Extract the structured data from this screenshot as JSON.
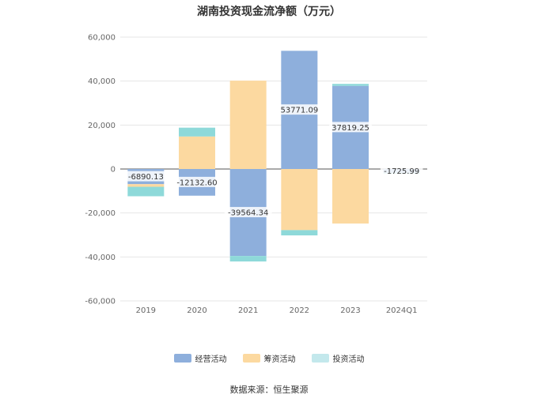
{
  "chart_data": {
    "type": "bar",
    "stacked": true,
    "title": "湖南投资现金流净额（万元）",
    "categories": [
      "2019",
      "2020",
      "2021",
      "2022",
      "2023",
      "2024Q1"
    ],
    "series": [
      {
        "name": "经营活动",
        "color": "#8eafdc",
        "values": [
          -6890.13,
          -12132.6,
          -39564.34,
          53771.09,
          37819.25,
          -1725.99
        ]
      },
      {
        "name": "筹资活动",
        "color": "#fcd9a0",
        "values": [
          -1200,
          14800,
          40200,
          -27800,
          -24800,
          0
        ]
      },
      {
        "name": "投资活动",
        "color": "#8ed9d9",
        "values": [
          -4300,
          4000,
          -2500,
          -2400,
          900,
          -400
        ]
      }
    ],
    "data_labels": [
      "-6890.13",
      "-12132.60",
      "-39564.34",
      "53771.09",
      "37819.25",
      "-1725.99"
    ],
    "yticks": [
      "60,000",
      "40,000",
      "20,000",
      "0",
      "-20,000",
      "-40,000",
      "-60,000"
    ],
    "ylim": [
      -60000,
      60000
    ],
    "grid": true,
    "legend_position": "bottom"
  },
  "source_text": "数据来源：恒生聚源"
}
